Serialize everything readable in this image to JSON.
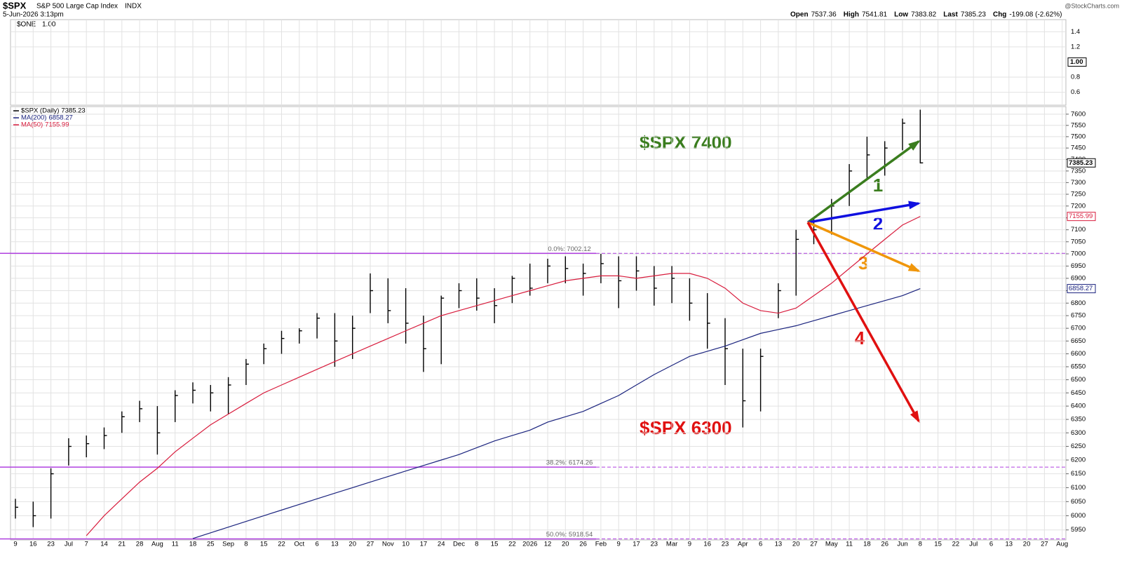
{
  "chart_data": {
    "type": "ohlc",
    "header": {
      "symbol": "$SPX",
      "name": "S&P 500 Large Cap Index",
      "exchange": "INDX",
      "date": "5-Jun-2026 3:13pm",
      "quote": [
        {
          "label": "Open",
          "value": 7537.36
        },
        {
          "label": "High",
          "value": 7541.81
        },
        {
          "label": "Low",
          "value": 7383.82
        },
        {
          "label": "Last",
          "value": 7385.23
        }
      ],
      "change_label": "Chg",
      "change": "-199.08 (-2.62%)",
      "credit": "@StockCharts.com"
    },
    "top_panel": {
      "name": "$ONE",
      "value": 1.0,
      "value_label": "1.00",
      "ylim": [
        0.43,
        1.56
      ],
      "yticks": [
        0.6,
        0.8,
        1.2,
        1.4
      ]
    },
    "categories": [
      "9",
      "16",
      "23",
      "Jul",
      "7",
      "14",
      "21",
      "28",
      "Aug",
      "11",
      "18",
      "25",
      "Sep",
      "8",
      "15",
      "22",
      "Oct",
      "6",
      "13",
      "20",
      "27",
      "Nov",
      "10",
      "17",
      "24",
      "Dec",
      "8",
      "15",
      "22",
      "2026",
      "12",
      "20",
      "26",
      "Feb",
      "9",
      "17",
      "23",
      "Mar",
      "9",
      "16",
      "23",
      "Apr",
      "6",
      "13",
      "20",
      "27",
      "May",
      "11",
      "18",
      "26",
      "Jun",
      "8",
      "15",
      "22",
      "Jul",
      "6",
      "13",
      "20",
      "27",
      "Aug"
    ],
    "series": [
      {
        "name": "$SPX (Daily)",
        "color": "#000000",
        "high": [
          6060,
          6050,
          6170,
          6280,
          6290,
          6320,
          6380,
          6420,
          6400,
          6460,
          6490,
          6480,
          6510,
          6580,
          6640,
          6690,
          6700,
          6760,
          6760,
          6750,
          6920,
          6900,
          6860,
          6750,
          6830,
          6880,
          6900,
          6860,
          6910,
          6960,
          6980,
          6990,
          6960,
          7000,
          6990,
          6990,
          6950,
          6950,
          6900,
          6840,
          6740,
          6620,
          6620,
          6880,
          7100,
          7150,
          7230,
          7380,
          7500,
          7480,
          7580,
          7620,
          null,
          null,
          null,
          null,
          null,
          null,
          null,
          null
        ],
        "low": [
          5990,
          5960,
          5990,
          6180,
          6210,
          6240,
          6300,
          6340,
          6220,
          6340,
          6410,
          6380,
          6370,
          6480,
          6560,
          6600,
          6640,
          6660,
          6550,
          6580,
          6760,
          6720,
          6640,
          6530,
          6560,
          6780,
          6770,
          6720,
          6800,
          6830,
          6880,
          6880,
          6830,
          6880,
          6780,
          6850,
          6790,
          6800,
          6730,
          6620,
          6480,
          6320,
          6380,
          6740,
          6830,
          7040,
          7080,
          7200,
          7320,
          7330,
          7440,
          7383,
          null,
          null,
          null,
          null,
          null,
          null,
          null,
          null
        ],
        "values": [
          6030,
          6000,
          6150,
          6250,
          6260,
          6290,
          6360,
          6390,
          6300,
          6440,
          6460,
          6450,
          6480,
          6560,
          6620,
          6660,
          6690,
          6740,
          6650,
          6700,
          6850,
          6770,
          6720,
          6620,
          6820,
          6850,
          6820,
          6790,
          6900,
          6860,
          6950,
          6940,
          6920,
          6960,
          6890,
          6930,
          6860,
          6900,
          6800,
          6720,
          6620,
          6420,
          6590,
          6850,
          7060,
          7100,
          7200,
          7350,
          7420,
          7450,
          7560,
          7385.23,
          null,
          null,
          null,
          null,
          null,
          null,
          null,
          null
        ]
      },
      {
        "name": "MA(200)",
        "color": "#1a237e",
        "values": [
          null,
          null,
          null,
          null,
          null,
          null,
          null,
          null,
          null,
          null,
          5920,
          5940,
          5960,
          5980,
          6000,
          6020,
          6040,
          6060,
          6080,
          6100,
          6120,
          6140,
          6160,
          6180,
          6200,
          6220,
          6245,
          6270,
          6290,
          6310,
          6340,
          6360,
          6380,
          6410,
          6440,
          6480,
          6520,
          6555,
          6590,
          6610,
          6630,
          6655,
          6680,
          6695,
          6710,
          6730,
          6750,
          6770,
          6790,
          6810,
          6830,
          6858.27,
          null,
          null,
          null,
          null,
          null,
          null,
          null,
          null
        ]
      },
      {
        "name": "MA(50)",
        "color": "#d81b3c",
        "values": [
          null,
          null,
          null,
          null,
          5930,
          6000,
          6060,
          6120,
          6170,
          6230,
          6280,
          6330,
          6370,
          6410,
          6450,
          6480,
          6510,
          6540,
          6570,
          6600,
          6630,
          6660,
          6690,
          6720,
          6750,
          6770,
          6790,
          6810,
          6830,
          6850,
          6870,
          6890,
          6900,
          6910,
          6910,
          6900,
          6910,
          6920,
          6920,
          6900,
          6860,
          6800,
          6770,
          6760,
          6780,
          6830,
          6880,
          6940,
          7000,
          7060,
          7120,
          7155.99,
          null,
          null,
          null,
          null,
          null,
          null,
          null,
          null
        ]
      }
    ],
    "fib_levels": [
      {
        "value": 7002.12,
        "label": "0.0%: 7002.12"
      },
      {
        "value": 6174.26,
        "label": "38.2%: 6174.26"
      },
      {
        "value": 5918.54,
        "label": "50.0%: 5918.54"
      }
    ],
    "fib_color": "#b040e0",
    "annotations": [
      {
        "text": "$SPX 7400",
        "color": "#3a7d1e"
      },
      {
        "text": "$SPX 6300",
        "color": "#e01010"
      }
    ],
    "arrows": [
      {
        "label": "1",
        "color": "#3a7d1e",
        "start": 7131,
        "end": 7479
      },
      {
        "label": "2",
        "color": "#1010e0",
        "start": 7131,
        "end": 7211
      },
      {
        "label": "3",
        "color": "#f0960a",
        "start": 7131,
        "end": 6930
      },
      {
        "label": "4",
        "color": "#e01010",
        "start": 7131,
        "end": 6344
      }
    ],
    "log_scale": true,
    "ylim": [
      5915,
      7634
    ],
    "yticks": [
      5950,
      6000,
      6050,
      6100,
      6150,
      6200,
      6250,
      6300,
      6350,
      6400,
      6450,
      6500,
      6550,
      6600,
      6650,
      6700,
      6750,
      6800,
      6850,
      6900,
      6950,
      7000,
      7050,
      7100,
      7150,
      7200,
      7250,
      7300,
      7350,
      7400,
      7450,
      7500,
      7550,
      7600
    ],
    "grid": true
  }
}
